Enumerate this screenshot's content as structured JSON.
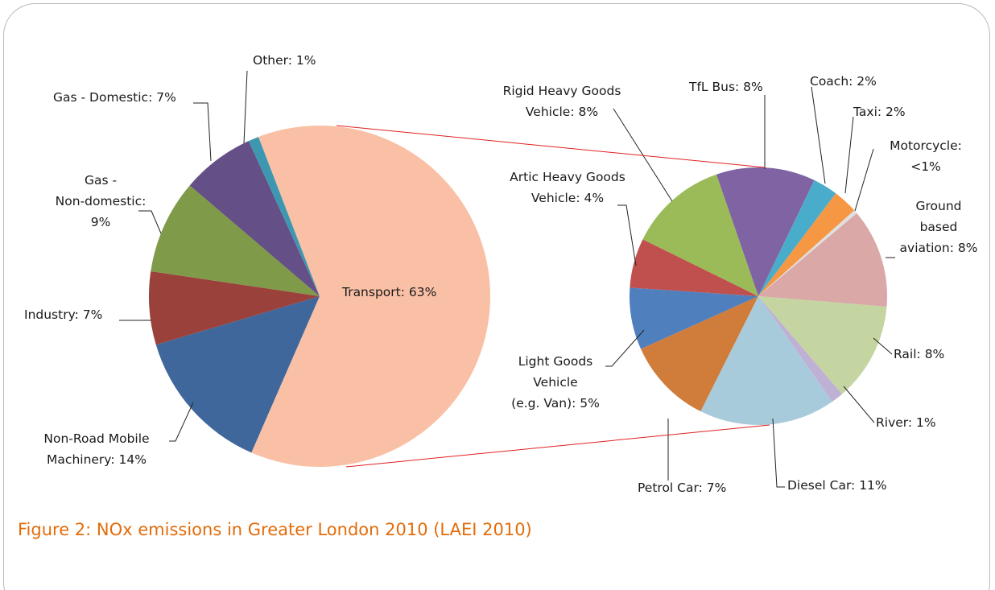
{
  "chart_data": [
    {
      "type": "pie",
      "labels": [
        "Transport: 63%",
        "Non-Road Mobile\nMachinery: 14%",
        "Industry: 7%",
        "Gas -\nNon-domestic:\n9%",
        "Gas - Domestic: 7%",
        "Other: 1%"
      ],
      "values": [
        63,
        14,
        7,
        9,
        7,
        1
      ],
      "colors": [
        "#f9c0a6",
        "#3f679c",
        "#9b413c",
        "#7f9a48",
        "#644f86",
        "#3d97b0"
      ]
    },
    {
      "type": "pie",
      "labels": [
        "TfL Bus: 8%",
        "Coach: 2%",
        "Taxi: 2%",
        "Motorcycle:\n<1%",
        "Ground\nbased\naviation: 8%",
        "Rail: 8%",
        "River: 1%",
        "Diesel Car: 11%",
        "Petrol Car: 7%",
        "Light Goods\nVehicle\n(e.g. Van): 5%",
        "Artic Heavy Goods\nVehicle: 4%",
        "Rigid Heavy Goods\nVehicle: 8%"
      ],
      "values": [
        8,
        2,
        2,
        0.3,
        8,
        8,
        1,
        11,
        7,
        5,
        4,
        8
      ],
      "colors": [
        "#7f63a2",
        "#4aaccb",
        "#f59743",
        "#e0e0e0",
        "#d9a8a7",
        "#c4d5a2",
        "#bfb1d3",
        "#a8cbdb",
        "#d07c3a",
        "#4f80bd",
        "#c0504d",
        "#9bbb59"
      ]
    }
  ],
  "caption": "Figure 2: NOx emissions in Greater London 2010 (LAEI 2010)"
}
